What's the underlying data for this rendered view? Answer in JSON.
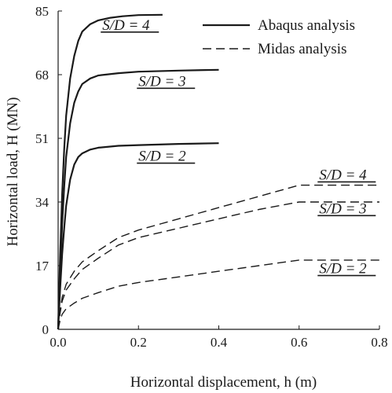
{
  "chart_data": {
    "type": "line",
    "xlabel": "Horizontal displacement, h (m)",
    "ylabel": "Horizontal load, H (MN)",
    "xlim": [
      0,
      0.8
    ],
    "ylim": [
      0,
      85
    ],
    "x_ticks": [
      0.0,
      0.2,
      0.4,
      0.6,
      0.8
    ],
    "x_tick_labels": [
      "0.0",
      "0.2",
      "0.4",
      "0.6",
      "0.8"
    ],
    "y_ticks": [
      0,
      17,
      34,
      51,
      68,
      85
    ],
    "y_tick_labels": [
      "0",
      "17",
      "34",
      "51",
      "68",
      "85"
    ],
    "grid": false,
    "legend_position": "top-right",
    "legend": [
      {
        "label": "Abaqus analysis",
        "style": "solid"
      },
      {
        "label": "Midas analysis",
        "style": "dashed"
      }
    ],
    "series": [
      {
        "name": "Abaqus analysis",
        "label": "S/D = 4",
        "style": "solid",
        "x": [
          0,
          0.005,
          0.01,
          0.015,
          0.02,
          0.03,
          0.04,
          0.05,
          0.06,
          0.08,
          0.1,
          0.13,
          0.16,
          0.2,
          0.26
        ],
        "y": [
          0,
          20,
          36,
          48,
          57,
          67,
          73,
          77,
          79.5,
          81.5,
          82.5,
          83.2,
          83.6,
          83.9,
          84
        ]
      },
      {
        "name": "Abaqus analysis",
        "label": "S/D = 3",
        "style": "solid",
        "x": [
          0,
          0.005,
          0.01,
          0.015,
          0.02,
          0.03,
          0.04,
          0.05,
          0.06,
          0.08,
          0.1,
          0.15,
          0.2,
          0.3,
          0.4
        ],
        "y": [
          0,
          15,
          28,
          38,
          46,
          55,
          60.5,
          63.5,
          65.5,
          67,
          67.8,
          68.4,
          68.8,
          69.1,
          69.3
        ]
      },
      {
        "name": "Abaqus analysis",
        "label": "S/D = 2",
        "style": "solid",
        "x": [
          0,
          0.005,
          0.01,
          0.015,
          0.02,
          0.03,
          0.04,
          0.05,
          0.06,
          0.08,
          0.1,
          0.15,
          0.2,
          0.3,
          0.4
        ],
        "y": [
          0,
          11,
          20,
          27,
          33,
          40,
          44,
          46,
          47,
          48,
          48.5,
          49,
          49.2,
          49.5,
          49.7
        ]
      },
      {
        "name": "Midas analysis",
        "label": "S/D = 4",
        "style": "dashed",
        "x": [
          0,
          0.005,
          0.01,
          0.02,
          0.04,
          0.06,
          0.1,
          0.15,
          0.2,
          0.3,
          0.4,
          0.5,
          0.6,
          0.65,
          0.8
        ],
        "y": [
          0,
          5,
          8.5,
          12,
          15.5,
          18,
          21,
          24.5,
          26.5,
          29.5,
          32.5,
          35.5,
          38.5,
          38.5,
          38.5
        ]
      },
      {
        "name": "Midas analysis",
        "label": "S/D = 3",
        "style": "dashed",
        "x": [
          0,
          0.005,
          0.01,
          0.02,
          0.04,
          0.06,
          0.1,
          0.15,
          0.2,
          0.3,
          0.4,
          0.5,
          0.6,
          0.65,
          0.8
        ],
        "y": [
          0,
          4.5,
          7.5,
          10.5,
          13.5,
          16,
          19,
          22.5,
          24.5,
          27,
          29.5,
          32,
          34,
          34,
          34
        ]
      },
      {
        "name": "Midas analysis",
        "label": "S/D = 2",
        "style": "dashed",
        "x": [
          0,
          0.005,
          0.01,
          0.02,
          0.04,
          0.06,
          0.1,
          0.15,
          0.2,
          0.3,
          0.4,
          0.5,
          0.6,
          0.65,
          0.8
        ],
        "y": [
          0,
          2.5,
          4,
          5.5,
          7,
          8.3,
          9.8,
          11.5,
          12.5,
          14,
          15.5,
          17,
          18.5,
          18.5,
          18.5
        ]
      }
    ],
    "annotations": [
      {
        "text": "S/D = 4",
        "x": 0.11,
        "y": 80
      },
      {
        "text": "S/D = 3",
        "x": 0.2,
        "y": 65
      },
      {
        "text": "S/D = 2",
        "x": 0.2,
        "y": 45
      },
      {
        "text": "S/D = 4",
        "x": 0.65,
        "y": 40
      },
      {
        "text": "S/D = 3",
        "x": 0.65,
        "y": 31
      },
      {
        "text": "S/D = 2",
        "x": 0.65,
        "y": 15
      }
    ]
  }
}
